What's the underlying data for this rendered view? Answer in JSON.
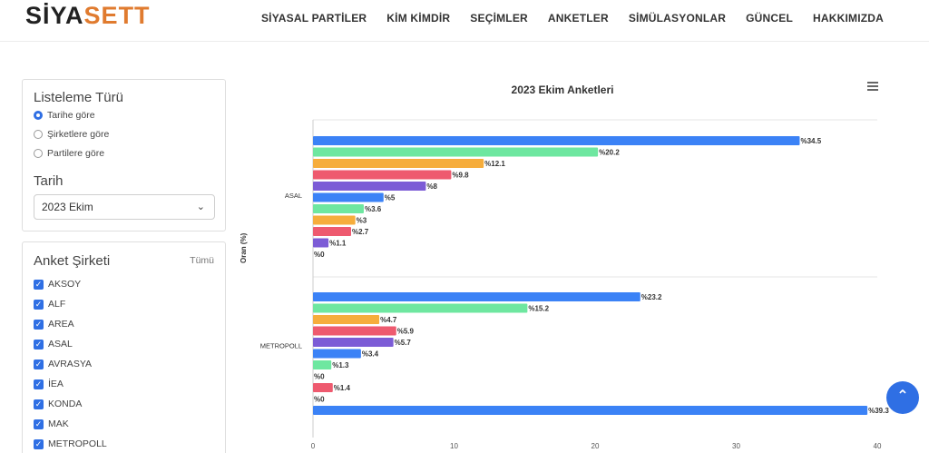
{
  "header": {
    "logo_part1": "SİYA",
    "logo_part2": "SETT",
    "nav": [
      "SİYASAL PARTİLER",
      "KİM KİMDİR",
      "SEÇİMLER",
      "ANKETLER",
      "SİMÜLASYONLAR",
      "GÜNCEL",
      "HAKKIMIZDA"
    ]
  },
  "sidebar": {
    "list_type_title": "Listeleme Türü",
    "list_options": [
      {
        "label": "Tarihe göre",
        "selected": true
      },
      {
        "label": "Şirketlere göre",
        "selected": false
      },
      {
        "label": "Partilere göre",
        "selected": false
      }
    ],
    "date_title": "Tarih",
    "date_value": "2023 Ekim",
    "company_title": "Anket Şirketi",
    "all_label": "Tümü",
    "companies": [
      "AKSOY",
      "ALF",
      "AREA",
      "ASAL",
      "AVRASYA",
      "İEA",
      "KONDA",
      "MAK",
      "METROPOLL"
    ]
  },
  "chart_data": {
    "type": "bar",
    "orientation": "horizontal",
    "title": "2023 Ekim Anketleri",
    "ylabel": "Oran (%)",
    "xlim": [
      0,
      40
    ],
    "xticks": [
      0,
      10,
      20,
      30,
      40
    ],
    "value_prefix": "%",
    "colors": [
      "#3b82f6",
      "#6ee7a0",
      "#f6ad3c",
      "#ee5a6f",
      "#7c5cd6"
    ],
    "groups": [
      {
        "name": "ASAL",
        "values": [
          34.5,
          20.2,
          12.1,
          9.8,
          8,
          5,
          3.6,
          3,
          2.7,
          1.1,
          0
        ]
      },
      {
        "name": "METROPOLL",
        "values": [
          23.2,
          15.2,
          4.7,
          5.9,
          5.7,
          3.4,
          1.3,
          0,
          1.4,
          0
        ]
      },
      {
        "name": "",
        "values": [
          39.3
        ]
      }
    ]
  },
  "scroll_top_icon": "double-chevron-up-icon"
}
